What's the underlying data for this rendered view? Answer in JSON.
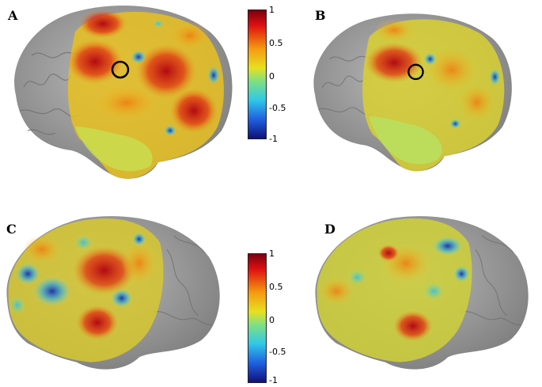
{
  "panels": [
    {
      "label": "A",
      "view": "left-lateral",
      "marker": "black-circle"
    },
    {
      "label": "B",
      "view": "left-lateral",
      "marker": "black-circle"
    },
    {
      "label": "C",
      "view": "right-lateral"
    },
    {
      "label": "D",
      "view": "right-lateral"
    }
  ],
  "colorbars": [
    {
      "ticks": [
        "1",
        "0.5",
        "0",
        "-0.5",
        "-1"
      ]
    },
    {
      "ticks": [
        "1",
        "0.5",
        "0",
        "-0.5",
        "-1"
      ]
    }
  ],
  "colors": {
    "brain_gray": "#9a9a9a",
    "high": "#c8102e",
    "mid_high": "#f0a020",
    "zero": "#c8e04a",
    "mid_low": "#3fb7d8",
    "low": "#1a2b9c"
  }
}
